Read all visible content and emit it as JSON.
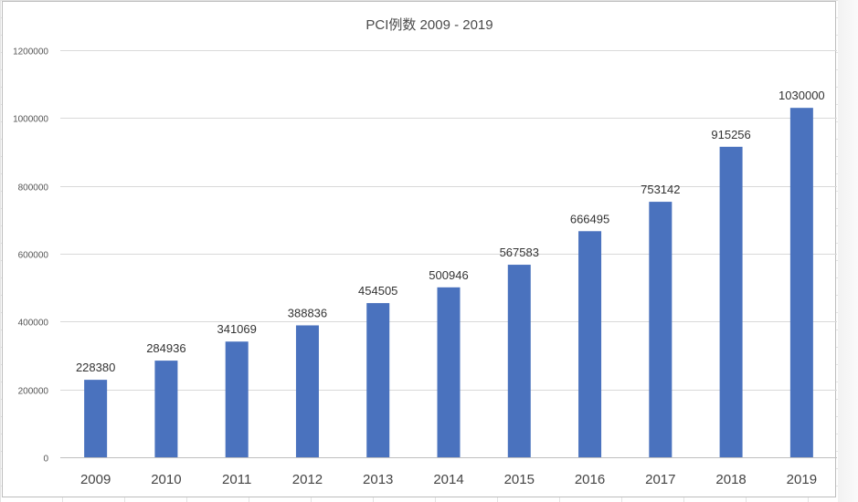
{
  "chart_data": {
    "type": "bar",
    "title": "PCI例数 2009 - 2019",
    "categories": [
      "2009",
      "2010",
      "2011",
      "2012",
      "2013",
      "2014",
      "2015",
      "2016",
      "2017",
      "2018",
      "2019"
    ],
    "values": [
      228380,
      284936,
      341069,
      388836,
      454505,
      500946,
      567583,
      666495,
      753142,
      915256,
      1030000
    ],
    "data_labels": [
      "228380",
      "284936",
      "341069",
      "388836",
      "454505",
      "500946",
      "567583",
      "666495",
      "753142",
      "915256",
      "1030000"
    ],
    "yticks": [
      0,
      200000,
      400000,
      600000,
      800000,
      1000000,
      1200000
    ],
    "ytick_labels": [
      "0",
      "200000",
      "400000",
      "600000",
      "800000",
      "1000000",
      "1200000"
    ],
    "ylim": [
      0,
      1200000
    ],
    "xlabel": "",
    "ylabel": "",
    "grid": true,
    "legend": "none",
    "series_color": "#4A72BE"
  }
}
